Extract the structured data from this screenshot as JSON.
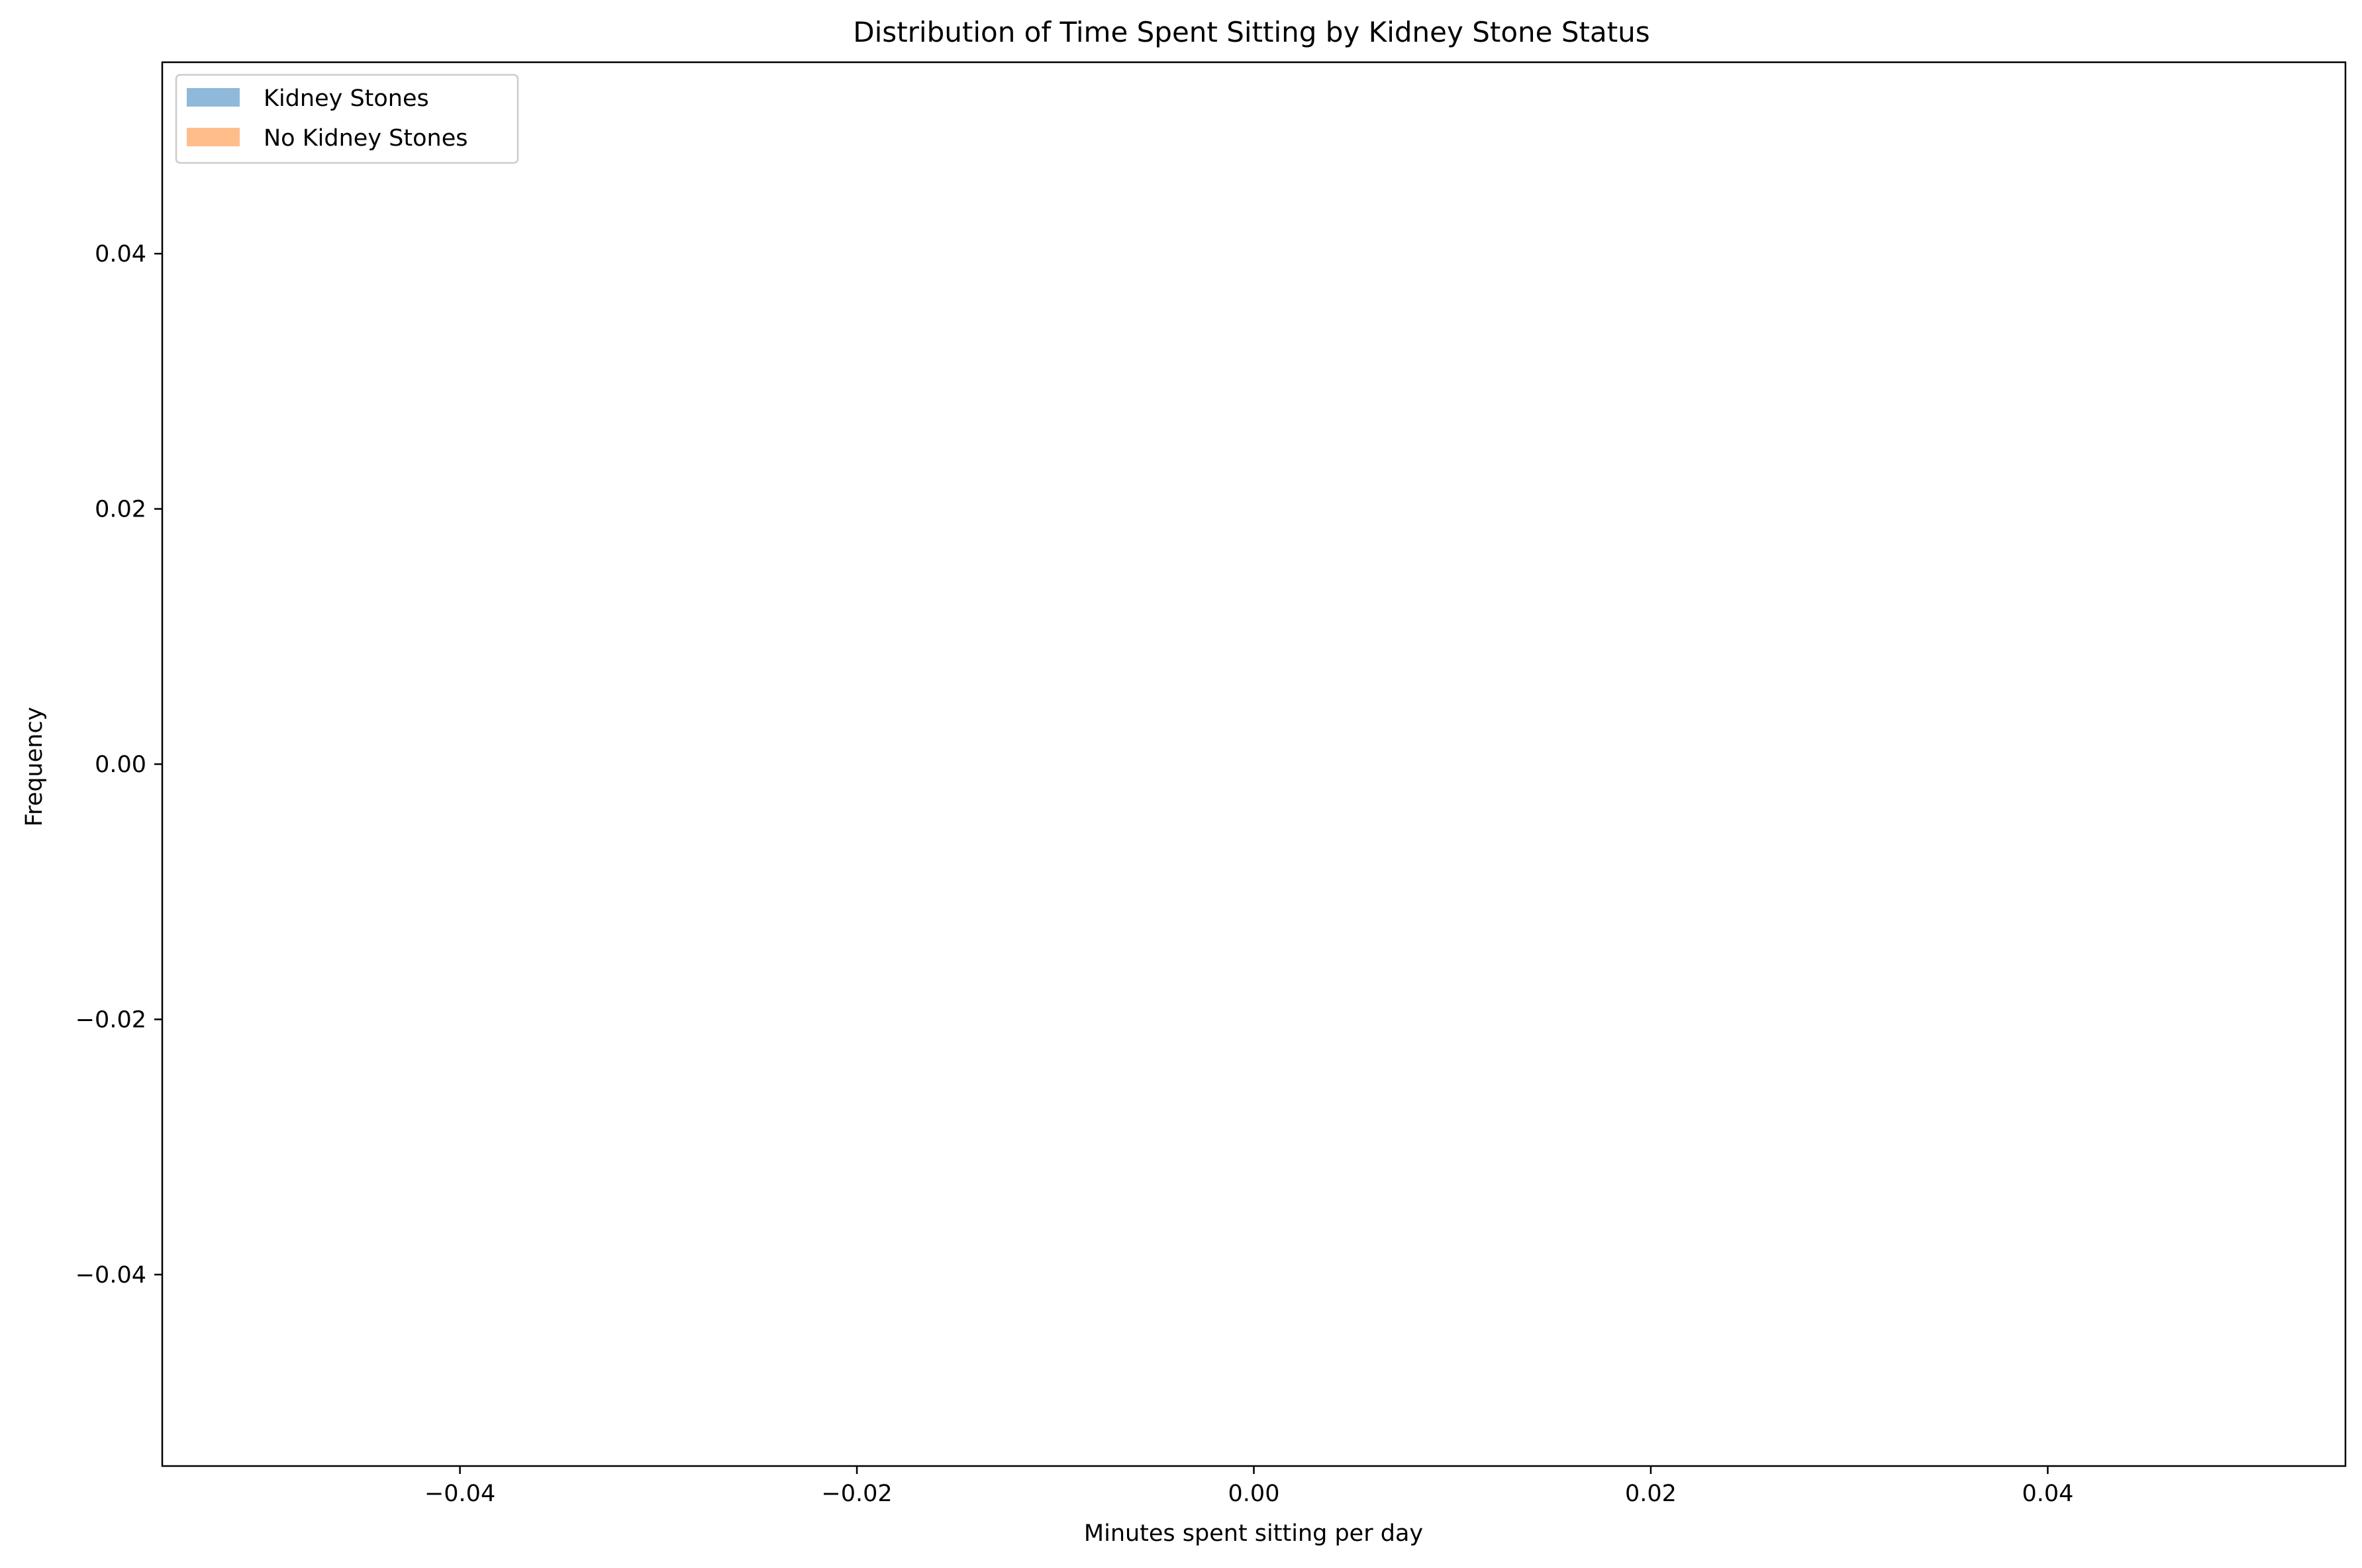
{
  "chart_data": {
    "type": "bar",
    "title": "Distribution of Time Spent Sitting by Kidney Stone Status",
    "xlabel": "Minutes spent sitting per day",
    "ylabel": "Frequency",
    "xlim": [
      -0.055,
      0.055
    ],
    "ylim": [
      -0.055,
      0.055
    ],
    "xticks": [
      -0.04,
      -0.02,
      0.0,
      0.02,
      0.04
    ],
    "xtick_labels": [
      "−0.04",
      "−0.02",
      "0.00",
      "0.02",
      "0.04"
    ],
    "yticks": [
      -0.04,
      -0.02,
      0.0,
      0.02,
      0.04
    ],
    "ytick_labels": [
      "−0.04",
      "−0.02",
      "0.00",
      "0.02",
      "0.04"
    ],
    "grid": false,
    "legend_position": "top-left",
    "series": [
      {
        "name": "Kidney Stones",
        "color": "#8FB9DA",
        "values": []
      },
      {
        "name": "No Kidney Stones",
        "color": "#FFBD8C",
        "values": []
      }
    ]
  }
}
